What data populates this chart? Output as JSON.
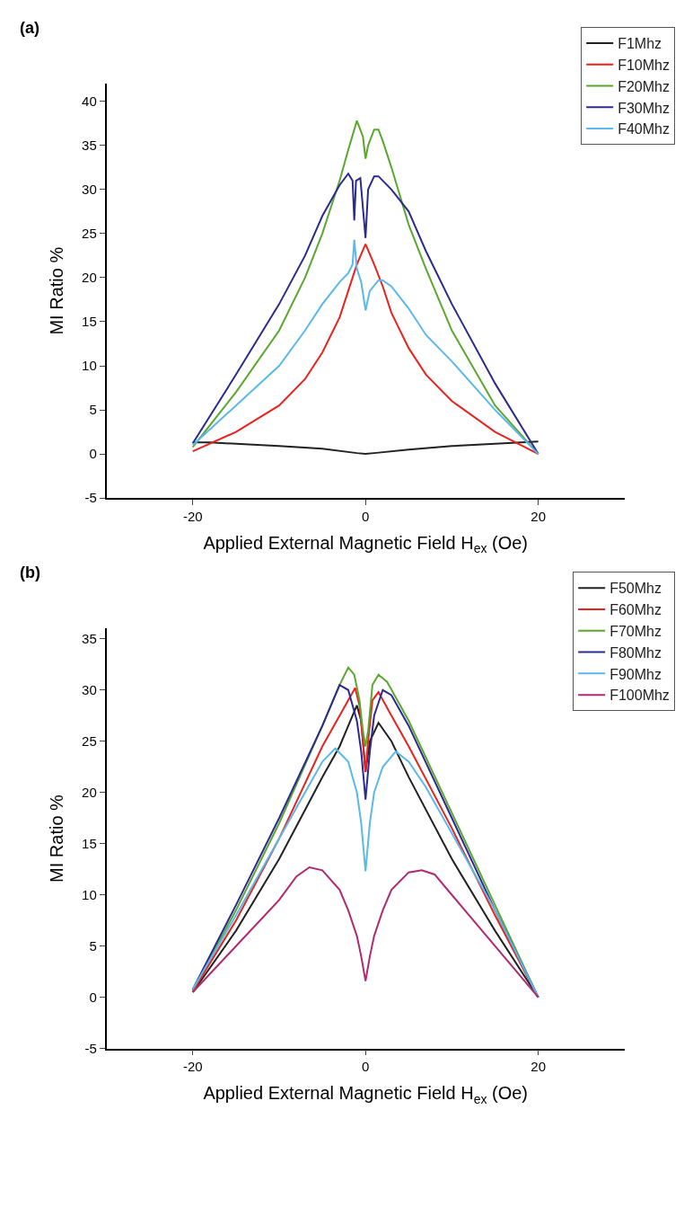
{
  "chart_data": [
    {
      "type": "line",
      "title": "(a)",
      "xlabel": "Applied External Magnetic Field H$_{ex}$ (Oe)",
      "ylabel": "MI Ratio %",
      "xlim": [
        -30,
        30
      ],
      "xticks": [
        -20,
        0,
        20
      ],
      "ylim": [
        -5,
        42
      ],
      "yticks": [
        -5,
        0,
        5,
        10,
        15,
        20,
        25,
        30,
        35,
        40
      ],
      "legend": "top right",
      "marker": "none",
      "line_style": "solid",
      "series": [
        {
          "name": "F1Mhz",
          "color": "#222222",
          "x": [
            -20,
            -18,
            -14,
            -10,
            -5,
            -1,
            0,
            1,
            5,
            10,
            14,
            18,
            20
          ],
          "values": [
            1.3,
            1.3,
            1.1,
            0.9,
            0.6,
            0.1,
            0,
            0.1,
            0.5,
            0.9,
            1.1,
            1.3,
            1.4
          ]
        },
        {
          "name": "F10Mhz",
          "color": "#e8231e",
          "x": [
            -20,
            -15,
            -10,
            -7,
            -5,
            -3,
            -2,
            -1,
            0,
            1,
            2,
            3,
            5,
            7,
            10,
            15,
            20
          ],
          "values": [
            0.3,
            2.5,
            5.5,
            8.5,
            11.5,
            15.5,
            18.5,
            21.5,
            23.8,
            21.5,
            19,
            16,
            12,
            9,
            6,
            2.5,
            0
          ]
        },
        {
          "name": "F20Mhz",
          "color": "#5aa72e",
          "x": [
            -20,
            -15,
            -10,
            -7,
            -5,
            -3,
            -2,
            -1,
            -0.3,
            0,
            0.3,
            1,
            1.5,
            2,
            3,
            5,
            7,
            10,
            15,
            20
          ],
          "values": [
            0.8,
            7,
            14,
            20,
            25,
            31,
            34.5,
            37.8,
            36,
            33.5,
            35,
            36.8,
            36.8,
            35.5,
            32.5,
            26,
            21,
            14,
            5.5,
            0
          ]
        },
        {
          "name": "F30Mhz",
          "color": "#2b2a8f",
          "x": [
            -20,
            -15,
            -10,
            -7,
            -5,
            -3,
            -2,
            -1.5,
            -1.3,
            -1.1,
            -0.6,
            0,
            0.3,
            1,
            1.5,
            3,
            5,
            7,
            10,
            15,
            20
          ],
          "values": [
            1.2,
            9,
            17,
            22.5,
            27,
            30.5,
            31.8,
            31,
            26.5,
            31,
            31.3,
            24.5,
            30,
            31.5,
            31.5,
            30,
            27.5,
            23,
            17,
            8,
            0
          ]
        },
        {
          "name": "F40Mhz",
          "color": "#5bb8ea",
          "x": [
            -20,
            -15,
            -10,
            -7,
            -5,
            -3,
            -2,
            -1.5,
            -1.3,
            -1,
            -0.5,
            0,
            0.5,
            1.5,
            2,
            3,
            5,
            7,
            10,
            15,
            20
          ],
          "values": [
            1,
            5.5,
            10,
            14,
            17,
            19.5,
            20.5,
            21.5,
            24.3,
            21,
            19.5,
            16.3,
            18.5,
            19.7,
            19.7,
            19,
            16.5,
            13.5,
            10.5,
            5,
            0
          ]
        }
      ]
    },
    {
      "type": "line",
      "title": "(b)",
      "xlabel": "Applied External Magnetic Field H$_{ex}$ (Oe)",
      "ylabel": "MI Ratio %",
      "xlim": [
        -30,
        30
      ],
      "xticks": [
        -20,
        0,
        20
      ],
      "ylim": [
        -5,
        36
      ],
      "yticks": [
        -5,
        0,
        5,
        10,
        15,
        20,
        25,
        30,
        35
      ],
      "legend": "top right",
      "marker": "none",
      "line_style": "solid",
      "series": [
        {
          "name": "F50Mhz",
          "color": "#222222",
          "x": [
            -20,
            -15,
            -10,
            -5,
            -3,
            -2,
            -1,
            -0.5,
            0,
            0.5,
            1.5,
            3,
            5,
            10,
            15,
            20
          ],
          "values": [
            0.5,
            6.5,
            13.5,
            21.5,
            24.5,
            26.5,
            28.5,
            27,
            22,
            25,
            26.8,
            25,
            21.5,
            13.5,
            6.5,
            0
          ]
        },
        {
          "name": "F60Mhz",
          "color": "#e8231e",
          "x": [
            -20,
            -15,
            -10,
            -5,
            -3,
            -1.2,
            -0.7,
            -0.3,
            0,
            0.3,
            0.8,
            1.5,
            3,
            5,
            10,
            15,
            20
          ],
          "values": [
            0.6,
            7.5,
            15.5,
            24.5,
            27.5,
            30.2,
            28.5,
            25,
            22,
            25,
            29,
            29.8,
            27.5,
            24.5,
            16.5,
            8,
            0
          ]
        },
        {
          "name": "F70Mhz",
          "color": "#5aa72e",
          "x": [
            -20,
            -15,
            -10,
            -5,
            -3,
            -2,
            -1.3,
            -0.7,
            -0.3,
            0,
            0.3,
            0.8,
            1.5,
            2.5,
            5,
            10,
            15,
            20
          ],
          "values": [
            0.7,
            8.5,
            17,
            26.5,
            30.5,
            32.2,
            31.5,
            29,
            26,
            24.5,
            26,
            30.5,
            31.5,
            30.8,
            27,
            18,
            9,
            0
          ]
        },
        {
          "name": "F80Mhz",
          "color": "#2b2a8f",
          "x": [
            -20,
            -15,
            -10,
            -5,
            -3,
            -2,
            -1,
            -0.5,
            0,
            0.5,
            1,
            2,
            3,
            5,
            10,
            15,
            20
          ],
          "values": [
            0.8,
            9,
            17.5,
            26.5,
            30.5,
            30,
            27,
            24,
            19.3,
            24,
            27.5,
            30,
            29.5,
            26.5,
            17.5,
            8.5,
            0
          ]
        },
        {
          "name": "F90Mhz",
          "color": "#5bb8ea",
          "x": [
            -20,
            -15,
            -10,
            -7,
            -5,
            -3.5,
            -2,
            -1,
            -0.5,
            0,
            0.5,
            1,
            2,
            3.5,
            5,
            7,
            10,
            15,
            20
          ],
          "values": [
            0.8,
            8,
            15.5,
            20,
            23,
            24.3,
            23,
            20,
            17,
            12.3,
            17,
            20,
            22.5,
            24,
            23,
            20.5,
            16,
            8.5,
            0
          ]
        },
        {
          "name": "F100Mhz",
          "color": "#b02a6e",
          "x": [
            -20,
            -15,
            -10,
            -8,
            -6.5,
            -5,
            -3,
            -2,
            -1,
            -0.5,
            0,
            0.5,
            1,
            2,
            3,
            5,
            6.5,
            8,
            10,
            15,
            20
          ],
          "values": [
            0.5,
            5,
            9.5,
            11.8,
            12.7,
            12.4,
            10.5,
            8.5,
            6,
            4,
            1.6,
            4,
            6,
            8.5,
            10.5,
            12.2,
            12.4,
            12,
            10,
            5,
            0
          ]
        }
      ]
    }
  ]
}
